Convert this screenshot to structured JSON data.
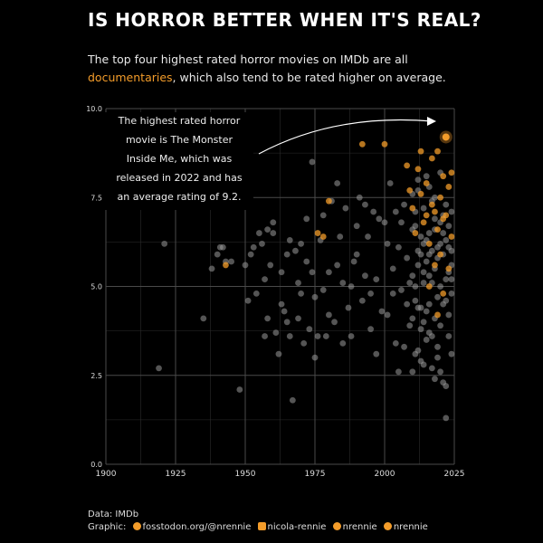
{
  "header": {
    "title": "IS HORROR BETTER WHEN IT'S REAL?",
    "subtitle_line1": "The top four highest rated horror movies on IMDb are all",
    "subtitle_highlight": "documentaries",
    "subtitle_rest": ", which also tend to be rated higher on average."
  },
  "annotation": {
    "lines": [
      "The highest rated horror",
      "movie is The Monster",
      "Inside Me, which was",
      "released in 2022 and has",
      "an average rating of 9.2."
    ]
  },
  "footer": {
    "data_line": "Data: IMDb",
    "graphic_label": "Graphic:",
    "mastodon": "fosstodon.org/@nrennie",
    "linkedin": "nicola-rennie",
    "bluesky": "nrennie",
    "github": "nrennie"
  },
  "colors": {
    "documentary": "#f39c2a",
    "other": "#9a9a9a",
    "background": "#000000",
    "grid": "#4a4a4a"
  },
  "chart_data": {
    "type": "scatter",
    "xlim": [
      1900,
      2025
    ],
    "ylim": [
      0,
      10
    ],
    "x_ticks": [
      "1900",
      "1925",
      "1950",
      "1975",
      "2000",
      "2025"
    ],
    "y_ticks": [
      "0.0",
      "2.5",
      "5.0",
      "7.5",
      "10.0"
    ],
    "grid": true,
    "series": [
      {
        "name": "",
        "color_key": "other",
        "points": [
          [
            1919,
            2.7
          ],
          [
            1921,
            6.2
          ],
          [
            1935,
            4.1
          ],
          [
            1938,
            5.5
          ],
          [
            1940,
            5.9
          ],
          [
            1941,
            6.1
          ],
          [
            1942,
            6.1
          ],
          [
            1943,
            5.7
          ],
          [
            1945,
            5.7
          ],
          [
            1948,
            2.1
          ],
          [
            1950,
            5.6
          ],
          [
            1951,
            4.6
          ],
          [
            1952,
            5.9
          ],
          [
            1953,
            6.1
          ],
          [
            1954,
            4.8
          ],
          [
            1955,
            6.5
          ],
          [
            1956,
            6.2
          ],
          [
            1957,
            5.2
          ],
          [
            1958,
            4.1
          ],
          [
            1959,
            5.6
          ],
          [
            1960,
            6.5
          ],
          [
            1961,
            3.7
          ],
          [
            1962,
            3.1
          ],
          [
            1963,
            5.4
          ],
          [
            1964,
            4.3
          ],
          [
            1965,
            5.9
          ],
          [
            1966,
            6.3
          ],
          [
            1967,
            1.8
          ],
          [
            1968,
            6.0
          ],
          [
            1969,
            5.1
          ],
          [
            1970,
            4.8
          ],
          [
            1971,
            3.4
          ],
          [
            1972,
            5.7
          ],
          [
            1973,
            3.8
          ],
          [
            1974,
            5.4
          ],
          [
            1975,
            4.7
          ],
          [
            1976,
            3.6
          ],
          [
            1977,
            6.3
          ],
          [
            1978,
            4.9
          ],
          [
            1979,
            3.6
          ],
          [
            1980,
            5.4
          ],
          [
            1981,
            7.4
          ],
          [
            1982,
            4.0
          ],
          [
            1983,
            5.6
          ],
          [
            1984,
            6.4
          ],
          [
            1985,
            5.1
          ],
          [
            1986,
            7.2
          ],
          [
            1987,
            4.4
          ],
          [
            1988,
            5.0
          ],
          [
            1989,
            5.7
          ],
          [
            1990,
            5.9
          ],
          [
            1991,
            7.5
          ],
          [
            1992,
            4.6
          ],
          [
            1993,
            5.3
          ],
          [
            1994,
            6.4
          ],
          [
            1995,
            3.8
          ],
          [
            1996,
            7.1
          ],
          [
            1997,
            5.2
          ],
          [
            1998,
            6.9
          ],
          [
            1999,
            4.3
          ],
          [
            1960,
            6.8
          ],
          [
            1965,
            4.0
          ],
          [
            1970,
            6.2
          ],
          [
            1975,
            3.0
          ],
          [
            1980,
            4.2
          ],
          [
            1985,
            3.4
          ],
          [
            1990,
            6.7
          ],
          [
            1995,
            4.8
          ],
          [
            1958,
            6.6
          ],
          [
            1966,
            3.6
          ],
          [
            1974,
            8.5
          ],
          [
            1978,
            7.0
          ],
          [
            1983,
            7.9
          ],
          [
            1988,
            3.6
          ],
          [
            1993,
            7.3
          ],
          [
            1997,
            3.1
          ],
          [
            1957,
            3.6
          ],
          [
            1963,
            4.5
          ],
          [
            1969,
            4.1
          ],
          [
            1972,
            6.9
          ],
          [
            2000,
            6.8
          ],
          [
            2001,
            4.2
          ],
          [
            2002,
            7.9
          ],
          [
            2003,
            5.5
          ],
          [
            2004,
            3.4
          ],
          [
            2005,
            6.1
          ],
          [
            2006,
            4.9
          ],
          [
            2007,
            7.3
          ],
          [
            2008,
            5.8
          ],
          [
            2009,
            3.9
          ],
          [
            2010,
            6.6
          ],
          [
            2011,
            5.0
          ],
          [
            2012,
            7.7
          ],
          [
            2013,
            4.4
          ],
          [
            2014,
            6.2
          ],
          [
            2015,
            8.1
          ],
          [
            2016,
            5.3
          ],
          [
            2017,
            3.6
          ],
          [
            2018,
            6.9
          ],
          [
            2019,
            4.7
          ],
          [
            2020,
            2.6
          ],
          [
            2021,
            5.9
          ],
          [
            2022,
            1.3
          ],
          [
            2023,
            4.2
          ],
          [
            2024,
            3.1
          ],
          [
            2010,
            2.6
          ],
          [
            2012,
            3.2
          ],
          [
            2014,
            2.8
          ],
          [
            2016,
            3.7
          ],
          [
            2018,
            2.4
          ],
          [
            2020,
            3.9
          ],
          [
            2022,
            2.2
          ],
          [
            2024,
            6.0
          ],
          [
            2011,
            7.1
          ],
          [
            2013,
            6.4
          ],
          [
            2015,
            5.7
          ],
          [
            2017,
            7.4
          ],
          [
            2019,
            6.1
          ],
          [
            2021,
            7.0
          ],
          [
            2023,
            6.7
          ],
          [
            2011,
            4.6
          ],
          [
            2013,
            3.8
          ],
          [
            2015,
            4.3
          ],
          [
            2017,
            5.1
          ],
          [
            2019,
            3.3
          ],
          [
            2021,
            4.5
          ],
          [
            2023,
            5.4
          ],
          [
            2012,
            5.6
          ],
          [
            2014,
            5.1
          ],
          [
            2016,
            6.5
          ],
          [
            2018,
            5.5
          ],
          [
            2020,
            6.8
          ],
          [
            2022,
            5.2
          ],
          [
            2024,
            4.8
          ],
          [
            2010,
            5.3
          ],
          [
            2012,
            6.0
          ],
          [
            2014,
            4.0
          ],
          [
            2016,
            4.5
          ],
          [
            2018,
            4.1
          ],
          [
            2020,
            5.0
          ],
          [
            2022,
            6.3
          ],
          [
            2024,
            5.6
          ],
          [
            2011,
            3.1
          ],
          [
            2013,
            2.9
          ],
          [
            2015,
            3.5
          ],
          [
            2017,
            2.7
          ],
          [
            2019,
            3.0
          ],
          [
            2021,
            2.3
          ],
          [
            2023,
            3.6
          ],
          [
            2010,
            7.6
          ],
          [
            2012,
            8.0
          ],
          [
            2014,
            7.2
          ],
          [
            2016,
            7.8
          ],
          [
            2018,
            7.5
          ],
          [
            2020,
            8.2
          ],
          [
            2022,
            7.3
          ],
          [
            2024,
            7.1
          ],
          [
            2011,
            6.7
          ],
          [
            2013,
            5.9
          ],
          [
            2015,
            6.3
          ],
          [
            2017,
            6.0
          ],
          [
            2019,
            5.8
          ],
          [
            2021,
            6.5
          ],
          [
            2023,
            6.1
          ],
          [
            2010,
            4.1
          ],
          [
            2012,
            4.4
          ],
          [
            2014,
            5.4
          ],
          [
            2016,
            5.9
          ],
          [
            2018,
            6.6
          ],
          [
            2020,
            6.2
          ],
          [
            2022,
            4.6
          ],
          [
            2024,
            5.2
          ],
          [
            2005,
            2.6
          ],
          [
            2007,
            3.3
          ],
          [
            2009,
            5.1
          ],
          [
            2003,
            4.8
          ],
          [
            2001,
            6.2
          ],
          [
            2006,
            6.8
          ],
          [
            2008,
            4.5
          ],
          [
            2004,
            7.1
          ]
        ]
      },
      {
        "name": "",
        "color_key": "documentary",
        "points": [
          [
            1943,
            5.6
          ],
          [
            1976,
            6.5
          ],
          [
            1978,
            6.4
          ],
          [
            1980,
            7.4
          ],
          [
            1992,
            9.0
          ],
          [
            2000,
            9.0
          ],
          [
            2008,
            8.4
          ],
          [
            2010,
            7.2
          ],
          [
            2012,
            8.3
          ],
          [
            2013,
            7.6
          ],
          [
            2014,
            6.8
          ],
          [
            2015,
            7.9
          ],
          [
            2016,
            6.2
          ],
          [
            2017,
            8.6
          ],
          [
            2018,
            7.1
          ],
          [
            2019,
            6.6
          ],
          [
            2019,
            8.8
          ],
          [
            2020,
            5.9
          ],
          [
            2020,
            7.5
          ],
          [
            2021,
            8.1
          ],
          [
            2021,
            4.8
          ],
          [
            2022,
            9.2
          ],
          [
            2022,
            7.0
          ],
          [
            2023,
            7.8
          ],
          [
            2024,
            6.4
          ],
          [
            2024,
            8.2
          ],
          [
            2018,
            5.6
          ],
          [
            2016,
            5.0
          ],
          [
            2011,
            6.5
          ],
          [
            2023,
            5.5
          ],
          [
            2009,
            7.7
          ],
          [
            2017,
            7.3
          ],
          [
            2015,
            7.0
          ],
          [
            2013,
            8.8
          ],
          [
            2021,
            6.9
          ],
          [
            2019,
            4.2
          ]
        ]
      }
    ]
  }
}
